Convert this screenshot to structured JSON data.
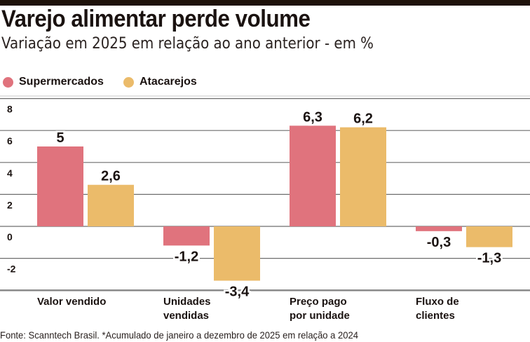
{
  "header": {
    "title": "Varejo alimentar perde volume",
    "subtitle": "Variação em 2025 em relação ao ano anterior - em %"
  },
  "footer": {
    "source": "Fonte: Scanntech Brasil. *Acumulado de janeiro a dezembro de 2025 em relação a 2024"
  },
  "chart_data": {
    "type": "bar",
    "title": "Varejo alimentar perde volume",
    "subtitle": "Variação em 2025 em relação ao ano anterior - em %",
    "xlabel": "",
    "ylabel": "",
    "ylim": [
      -4,
      8
    ],
    "yticks": [
      8,
      6,
      4,
      2,
      0,
      -2
    ],
    "grid": true,
    "legend_position": "top-left",
    "categories": [
      [
        "Valor vendido"
      ],
      [
        "Unidades",
        "vendidas"
      ],
      [
        "Preço pago",
        "por unidade"
      ],
      [
        "Fluxo de",
        "clientes"
      ]
    ],
    "series": [
      {
        "name": "Supermercados",
        "color": "#e0737d",
        "values": [
          5,
          -1.2,
          6.3,
          -0.3
        ],
        "labels": [
          "5",
          "-1,2",
          "6,3",
          "-0,3"
        ]
      },
      {
        "name": "Atacarejos",
        "color": "#ebbb6a",
        "values": [
          2.6,
          -3.4,
          6.2,
          -1.3
        ],
        "labels": [
          "2,6",
          "-3,4",
          "6,2",
          "-1,3"
        ]
      }
    ]
  }
}
